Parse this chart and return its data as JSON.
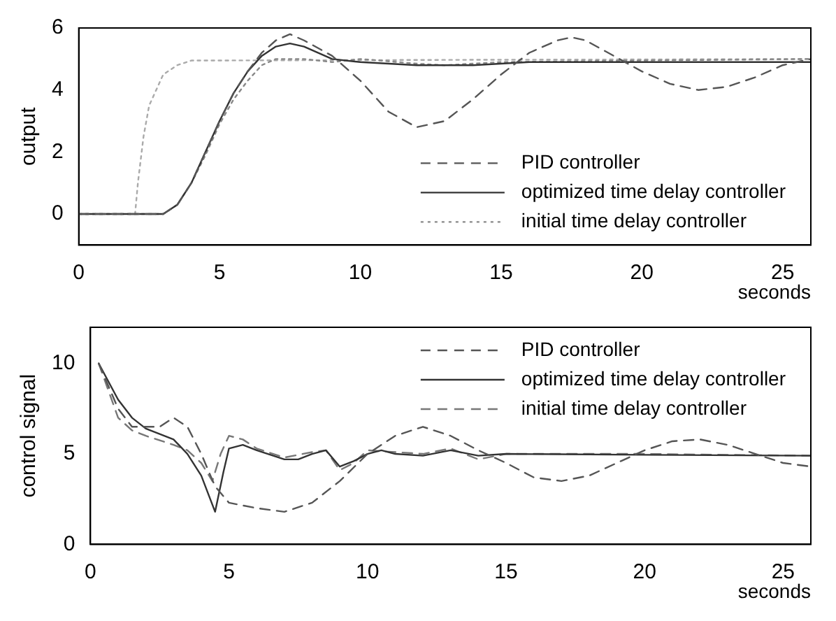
{
  "chart_data": [
    {
      "type": "line",
      "xlabel": "seconds",
      "ylabel": "output",
      "xlim": [
        0,
        26
      ],
      "ylim": [
        -1,
        6
      ],
      "xticks": [
        0,
        5,
        10,
        15,
        20,
        25
      ],
      "yticks": [
        0,
        2,
        4,
        6
      ],
      "grid": false,
      "legend": "bottom right",
      "marker": "none",
      "series": [
        {
          "name": "PID controller",
          "color": "#555555",
          "line_style": "dashed",
          "x": [
            0,
            3,
            3.5,
            4,
            4.5,
            5,
            5.5,
            6,
            6.5,
            7,
            7.5,
            8,
            9,
            10,
            11,
            12,
            13,
            14,
            15,
            16,
            17,
            17.5,
            18,
            19,
            20,
            21,
            22,
            23,
            24,
            25,
            26
          ],
          "values": [
            0,
            0,
            0.3,
            1,
            2,
            3,
            3.9,
            4.6,
            5.2,
            5.6,
            5.8,
            5.6,
            5.1,
            4.3,
            3.3,
            2.8,
            3.0,
            3.7,
            4.5,
            5.2,
            5.6,
            5.7,
            5.6,
            5.1,
            4.6,
            4.2,
            4.0,
            4.1,
            4.4,
            4.8,
            5.0
          ]
        },
        {
          "name": "optimized time delay controller",
          "color": "#333333",
          "line_style": "solid",
          "x": [
            0,
            3,
            3.5,
            4,
            4.5,
            5,
            5.5,
            6,
            6.5,
            7,
            7.5,
            8,
            9,
            10,
            12,
            14,
            16,
            26
          ],
          "values": [
            0,
            0,
            0.3,
            1,
            2,
            3,
            3.9,
            4.6,
            5.1,
            5.4,
            5.5,
            5.4,
            5.0,
            4.9,
            4.8,
            4.8,
            4.9,
            4.9
          ]
        },
        {
          "name": "initial time delay controller",
          "color": "#888888",
          "line_style": "dotted",
          "x": [
            0,
            3,
            3.5,
            4,
            4.5,
            5,
            5.5,
            6,
            6.5,
            7,
            8,
            9,
            10,
            12,
            13,
            15,
            20,
            26
          ],
          "values": [
            0,
            0,
            0.3,
            1,
            1.9,
            2.9,
            3.7,
            4.3,
            4.8,
            5.0,
            5.0,
            4.9,
            5.0,
            4.85,
            4.8,
            4.9,
            4.95,
            5.0
          ]
        },
        {
          "color": "#aaaaaa",
          "line_style": "dotted",
          "x": [
            0,
            2,
            2.1,
            2.3,
            2.5,
            3,
            3.5,
            4,
            26
          ],
          "values": [
            0,
            0,
            1,
            2.5,
            3.5,
            4.5,
            4.8,
            4.95,
            5.0
          ]
        }
      ]
    },
    {
      "type": "line",
      "xlabel": "seconds",
      "ylabel": "control signal",
      "xlim": [
        0,
        26
      ],
      "ylim": [
        0,
        12
      ],
      "xticks": [
        0,
        5,
        10,
        15,
        20,
        25
      ],
      "yticks": [
        0,
        5,
        10
      ],
      "grid": false,
      "legend": "top right",
      "marker": "none",
      "series": [
        {
          "name": "PID controller",
          "color": "#555555",
          "line_style": "dashed",
          "x": [
            0.3,
            1,
            1.5,
            2.5,
            3,
            3.5,
            4,
            4.5,
            5,
            6,
            7,
            8,
            9,
            10,
            11,
            12,
            13,
            14,
            15,
            16,
            17,
            18,
            19,
            20,
            21,
            22,
            23,
            24,
            25,
            26
          ],
          "values": [
            10,
            7.5,
            6.5,
            6.5,
            7,
            6.5,
            5,
            3.2,
            2.3,
            2,
            1.8,
            2.3,
            3.5,
            5,
            6,
            6.5,
            6,
            5.2,
            4.5,
            3.7,
            3.5,
            3.8,
            4.5,
            5.2,
            5.7,
            5.8,
            5.5,
            5,
            4.5,
            4.3
          ]
        },
        {
          "name": "optimized time delay controller",
          "color": "#333333",
          "line_style": "solid",
          "x": [
            0.3,
            1,
            1.5,
            2,
            3,
            3.5,
            4,
            4.5,
            4.8,
            5,
            5.5,
            6,
            7,
            7.5,
            8,
            8.5,
            9,
            9.5,
            10,
            10.5,
            11,
            12,
            13,
            14,
            15,
            20,
            26
          ],
          "values": [
            10,
            8,
            7,
            6.4,
            5.8,
            5,
            3.8,
            1.8,
            4,
            5.3,
            5.5,
            5.2,
            4.7,
            4.7,
            5,
            5.2,
            4.3,
            4.6,
            5,
            5.2,
            5,
            4.9,
            5.2,
            4.9,
            5,
            4.95,
            4.9
          ]
        },
        {
          "name": "initial time delay controller",
          "color": "#777777",
          "line_style": "dashed",
          "x": [
            0.3,
            1,
            1.5,
            2,
            3,
            3.5,
            4,
            4.4,
            4.7,
            5,
            5.5,
            6,
            7,
            8,
            8.5,
            9,
            9.5,
            10,
            11,
            12,
            13,
            14,
            15,
            20,
            26
          ],
          "values": [
            10,
            7,
            6.3,
            6,
            5.5,
            5.2,
            4.5,
            3.5,
            5,
            6,
            5.8,
            5.3,
            4.8,
            5.1,
            5.2,
            4.1,
            4.5,
            5.2,
            5.1,
            5,
            5.3,
            4.7,
            5,
            5,
            4.9
          ]
        }
      ]
    }
  ]
}
